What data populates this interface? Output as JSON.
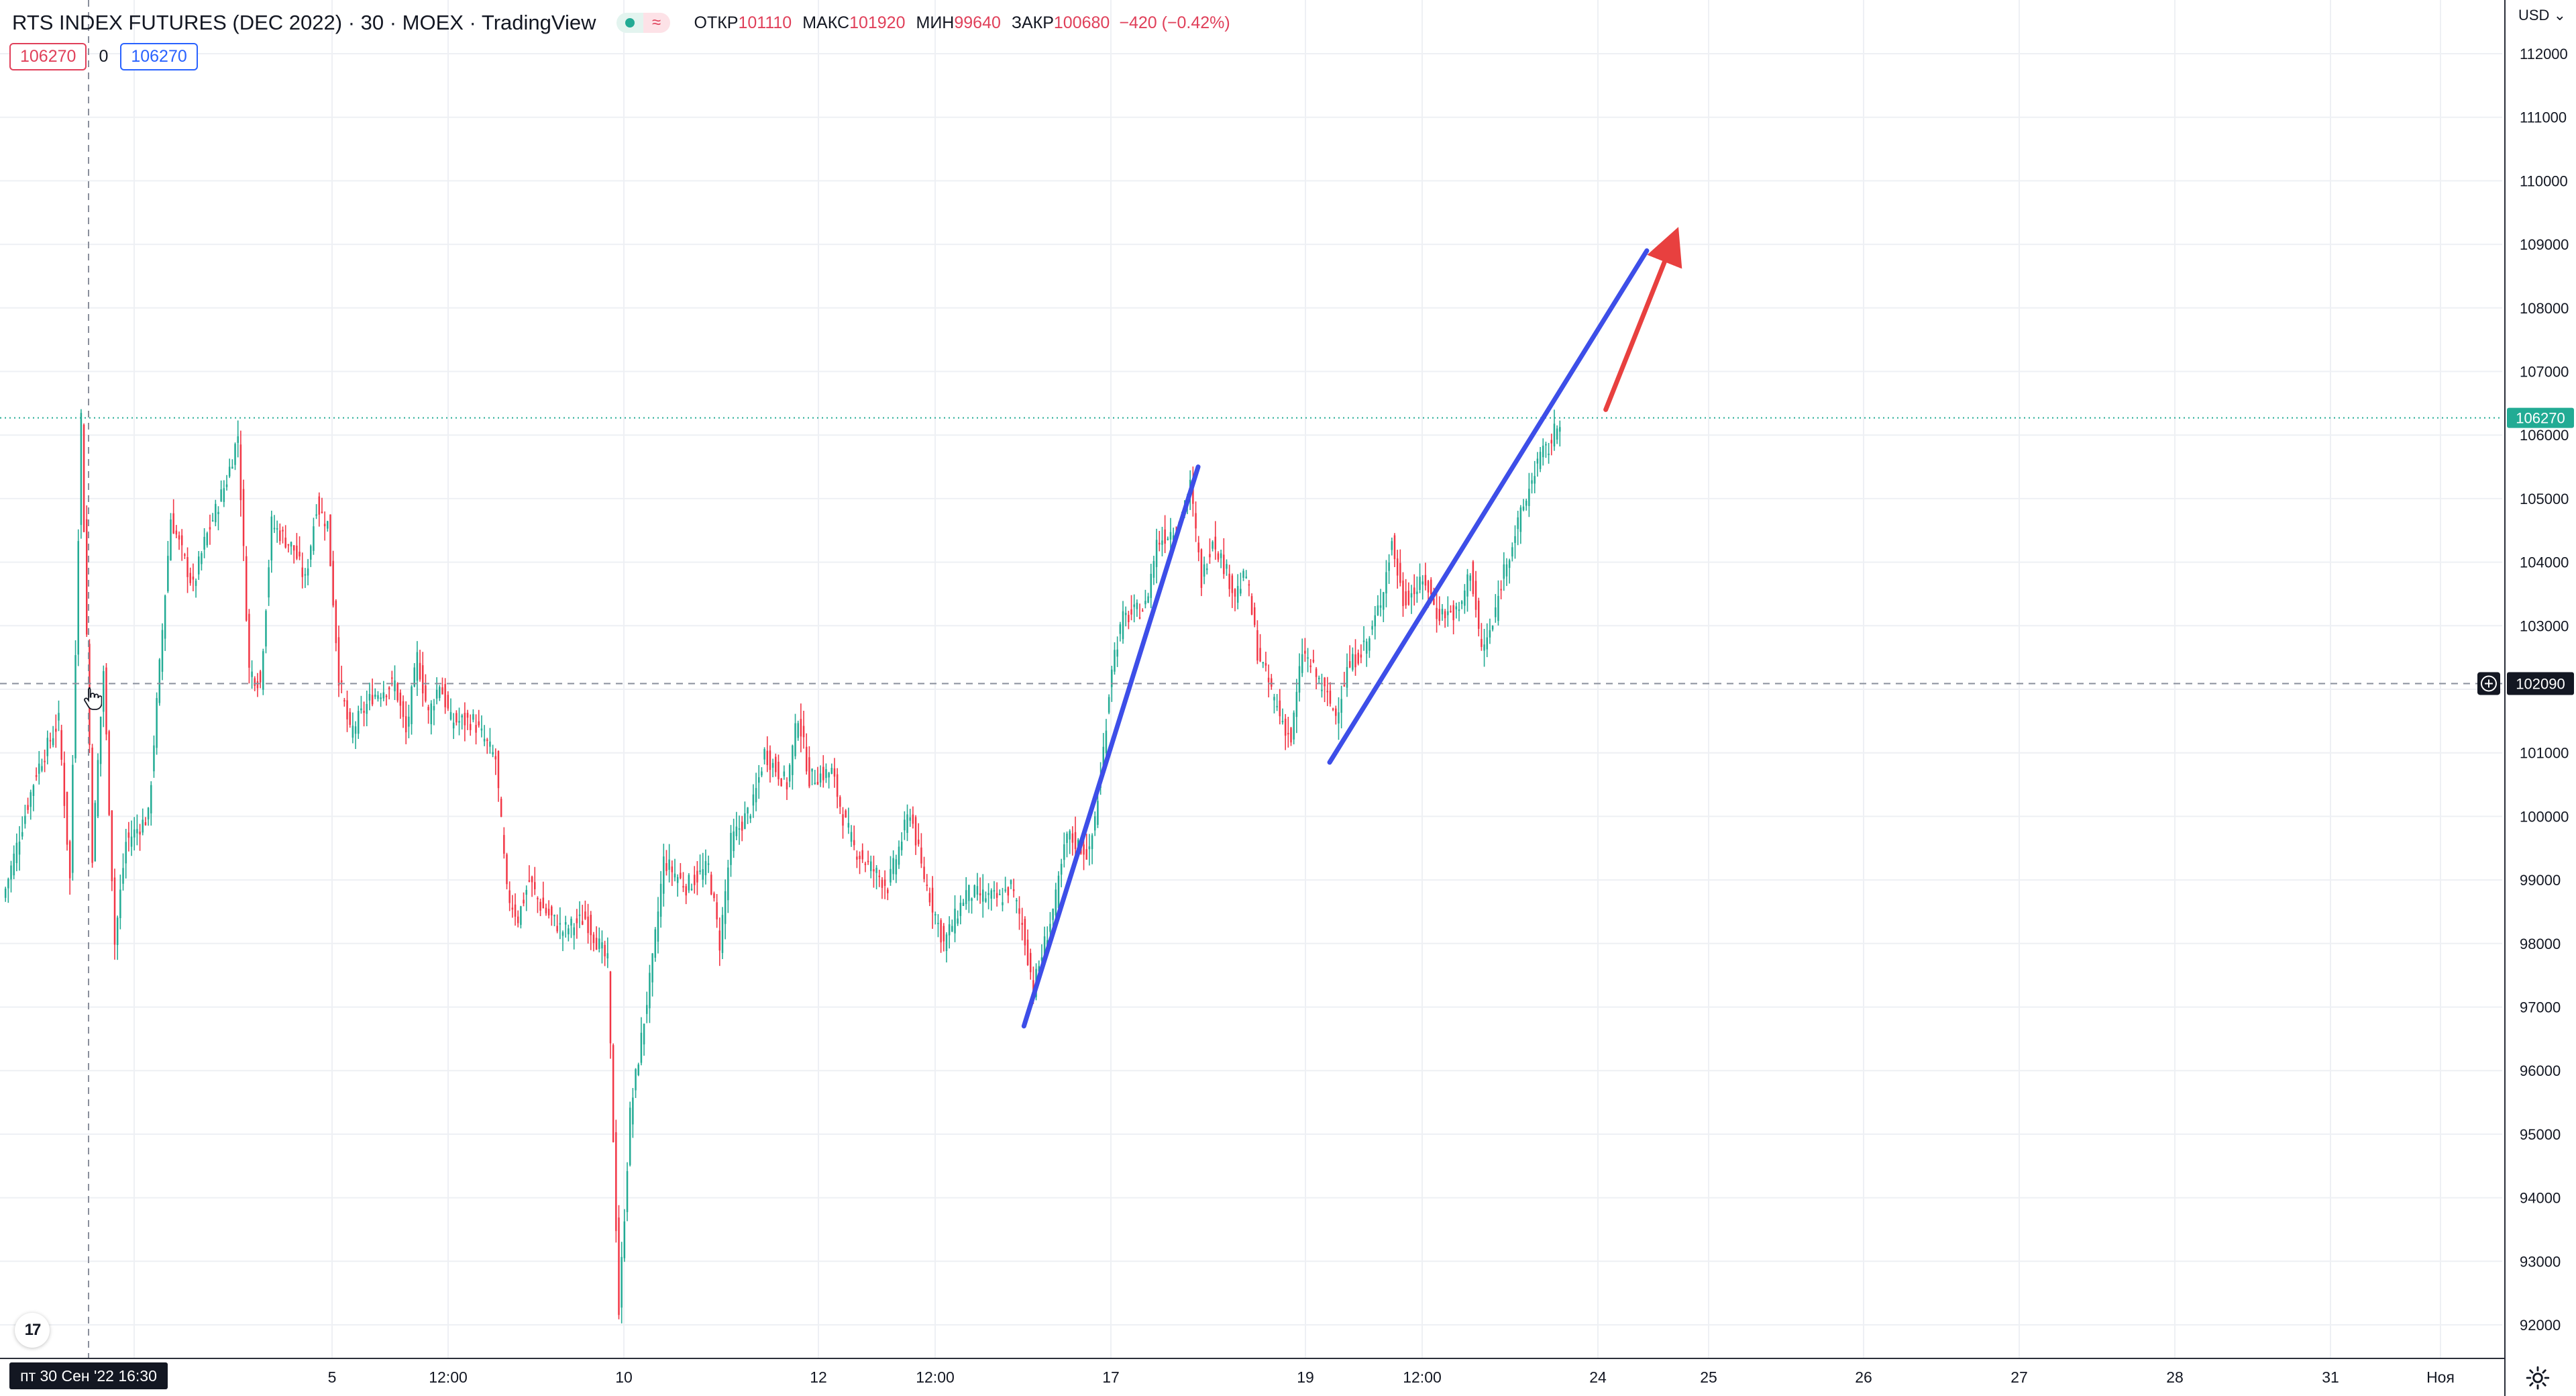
{
  "header": {
    "title": "RTS INDEX FUTURES (DEC 2022) · 30 · MOEX · TradingView",
    "toggle_glyph": "≈",
    "ohlc": {
      "open_label": "ОТКР",
      "open": "101110",
      "high_label": "МАКС",
      "high": "101920",
      "low_label": "МИН",
      "low": "99640",
      "close_label": "ЗАКР",
      "close": "100680",
      "change": "−420 (−0.42%)"
    }
  },
  "order_panel": {
    "sell_price": "106270",
    "spread": "0",
    "buy_price": "106270"
  },
  "price_scale": {
    "currency": "USD",
    "last_price_label": "106270",
    "crosshair_price_label": "102090"
  },
  "time_axis": {
    "crosshair_label": "пт 30 Сен '22   16:30"
  },
  "colors": {
    "up": "#22ab94",
    "down": "#f23645",
    "trendline": "#3d4ee8",
    "arrow": "#e8403f",
    "last_price": "#22ab94",
    "crosshair_label_bg": "#131722"
  },
  "chart_data": {
    "type": "candlestick",
    "symbol": "RTS INDEX FUTURES (DEC 2022)",
    "interval": "30",
    "ylim": [
      91600,
      112500
    ],
    "y_ticks": [
      92000,
      93000,
      94000,
      95000,
      96000,
      97000,
      98000,
      99000,
      100000,
      101000,
      102000,
      103000,
      104000,
      105000,
      106000,
      107000,
      108000,
      109000,
      110000,
      111000,
      112000
    ],
    "x_ticks": [
      "5",
      "12:00",
      "10",
      "12",
      "12:00",
      "17",
      "19",
      "12:00",
      "24",
      "25",
      "26",
      "27",
      "28",
      "31",
      "Ноя"
    ],
    "last_price": 106270,
    "crosshair_price": 102090,
    "price_path": [
      [
        0,
        98700
      ],
      [
        3,
        100700
      ],
      [
        5,
        101500
      ],
      [
        6,
        99000
      ],
      [
        7,
        106300
      ],
      [
        8,
        99400
      ],
      [
        9,
        102300
      ],
      [
        10,
        98000
      ],
      [
        11,
        99600
      ],
      [
        13,
        100000
      ],
      [
        15,
        104700
      ],
      [
        17,
        103600
      ],
      [
        18,
        104300
      ],
      [
        20,
        105300
      ],
      [
        21,
        106000
      ],
      [
        22,
        102300
      ],
      [
        23,
        102100
      ],
      [
        24,
        104600
      ],
      [
        26,
        104200
      ],
      [
        27,
        103700
      ],
      [
        28,
        104900
      ],
      [
        29,
        104600
      ],
      [
        30,
        102200
      ],
      [
        31,
        101300
      ],
      [
        33,
        101900
      ],
      [
        35,
        102100
      ],
      [
        36,
        101300
      ],
      [
        37,
        102500
      ],
      [
        38,
        101600
      ],
      [
        39,
        102100
      ],
      [
        40,
        101500
      ],
      [
        42,
        101500
      ],
      [
        44,
        100900
      ],
      [
        45,
        98800
      ],
      [
        46,
        98400
      ],
      [
        47,
        99000
      ],
      [
        48,
        98600
      ],
      [
        50,
        98200
      ],
      [
        52,
        98400
      ],
      [
        54,
        97700
      ],
      [
        55,
        92200
      ],
      [
        56,
        95300
      ],
      [
        58,
        97700
      ],
      [
        59,
        99300
      ],
      [
        61,
        98900
      ],
      [
        63,
        99200
      ],
      [
        64,
        98000
      ],
      [
        65,
        99600
      ],
      [
        67,
        100200
      ],
      [
        68,
        101000
      ],
      [
        70,
        100500
      ],
      [
        71,
        101600
      ],
      [
        72,
        100600
      ],
      [
        74,
        100700
      ],
      [
        75,
        100000
      ],
      [
        76,
        99500
      ],
      [
        77,
        99300
      ],
      [
        79,
        98900
      ],
      [
        80,
        99500
      ],
      [
        81,
        100100
      ],
      [
        82,
        99200
      ],
      [
        84,
        98000
      ],
      [
        86,
        98800
      ],
      [
        89,
        98700
      ],
      [
        90,
        98900
      ],
      [
        91,
        98300
      ],
      [
        92,
        97300
      ],
      [
        94,
        98700
      ],
      [
        95,
        99700
      ],
      [
        97,
        99400
      ],
      [
        98,
        100600
      ],
      [
        99,
        102400
      ],
      [
        100,
        103100
      ],
      [
        102,
        103300
      ],
      [
        103,
        104300
      ],
      [
        105,
        104600
      ],
      [
        106,
        105200
      ],
      [
        107,
        103700
      ],
      [
        108,
        104400
      ],
      [
        110,
        103500
      ],
      [
        111,
        103800
      ],
      [
        112,
        102600
      ],
      [
        114,
        101600
      ],
      [
        115,
        101200
      ],
      [
        116,
        102600
      ],
      [
        117,
        102300
      ],
      [
        119,
        101600
      ],
      [
        120,
        102300
      ],
      [
        122,
        102800
      ],
      [
        123,
        103400
      ],
      [
        124,
        104300
      ],
      [
        125,
        103400
      ],
      [
        127,
        103700
      ],
      [
        128,
        103200
      ],
      [
        130,
        103200
      ],
      [
        131,
        103900
      ],
      [
        132,
        102600
      ],
      [
        133,
        103000
      ],
      [
        134,
        103900
      ],
      [
        136,
        105000
      ],
      [
        137,
        105600
      ],
      [
        138,
        105800
      ],
      [
        139,
        106270
      ]
    ],
    "drawings": [
      {
        "type": "trendline",
        "from": [
          623,
          96700
        ],
        "to": [
          729,
          105500
        ]
      },
      {
        "type": "trendline",
        "from": [
          809,
          100850
        ],
        "to": [
          1002,
          108900
        ]
      },
      {
        "type": "arrow",
        "from": [
          977,
          106400
        ],
        "to": [
          1017,
          109000
        ]
      }
    ]
  }
}
